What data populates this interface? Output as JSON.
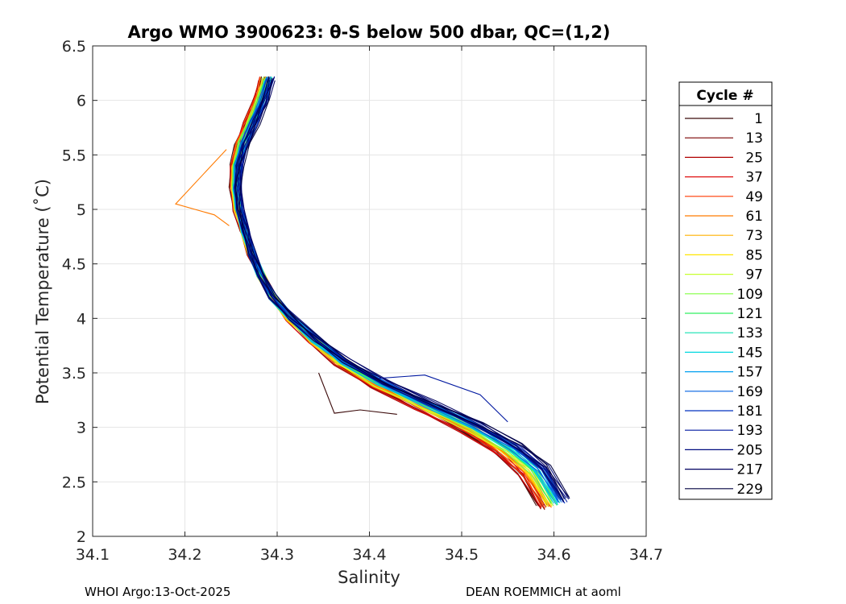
{
  "chart_data": {
    "type": "line",
    "title": "Argo WMO 3900623: θ-S below 500 dbar,  QC=(1,2)",
    "xlabel": "Salinity",
    "ylabel": "Potential Temperature (˚C)",
    "xlim": [
      34.1,
      34.7
    ],
    "ylim": [
      2,
      6.5
    ],
    "xticks": [
      "34.1",
      "34.2",
      "34.3",
      "34.4",
      "34.5",
      "34.6",
      "34.7"
    ],
    "yticks": [
      "2",
      "2.5",
      "3",
      "3.5",
      "4",
      "4.5",
      "5",
      "5.5",
      "6",
      "6.5"
    ],
    "grid": true,
    "legend": {
      "title": "Cycle #",
      "position": "right-outside",
      "entries": [
        {
          "label": "1",
          "color": "#3b0a0a"
        },
        {
          "label": "13",
          "color": "#7a0000"
        },
        {
          "label": "25",
          "color": "#b00000"
        },
        {
          "label": "37",
          "color": "#e01010"
        },
        {
          "label": "49",
          "color": "#ff3a00"
        },
        {
          "label": "61",
          "color": "#ff7a00"
        },
        {
          "label": "73",
          "color": "#ffb000"
        },
        {
          "label": "85",
          "color": "#ffe600"
        },
        {
          "label": "97",
          "color": "#c8ff30"
        },
        {
          "label": "109",
          "color": "#80ff40"
        },
        {
          "label": "121",
          "color": "#30f060"
        },
        {
          "label": "133",
          "color": "#10e0b0"
        },
        {
          "label": "145",
          "color": "#00d8e0"
        },
        {
          "label": "157",
          "color": "#00a0f0"
        },
        {
          "label": "169",
          "color": "#0060e0"
        },
        {
          "label": "181",
          "color": "#0030c0"
        },
        {
          "label": "193",
          "color": "#0018a0"
        },
        {
          "label": "205",
          "color": "#000c80"
        },
        {
          "label": "217",
          "color": "#000060"
        },
        {
          "label": "229",
          "color": "#000040"
        }
      ]
    },
    "base_curve": {
      "salinity": [
        34.289,
        34.282,
        34.272,
        34.262,
        34.256,
        34.255,
        34.258,
        34.265,
        34.272,
        34.282,
        34.295,
        34.315,
        34.34,
        34.37,
        34.41,
        34.46,
        34.51,
        34.55,
        34.578,
        34.6
      ],
      "theta": [
        6.2,
        6.0,
        5.8,
        5.6,
        5.4,
        5.2,
        5.0,
        4.8,
        4.6,
        4.4,
        4.2,
        4.0,
        3.8,
        3.6,
        3.4,
        3.2,
        3.0,
        2.8,
        2.6,
        2.3
      ]
    },
    "annotations": [
      {
        "cycle": "1",
        "salinity": [
          34.345,
          34.362,
          34.39,
          34.43
        ],
        "theta": [
          3.5,
          3.13,
          3.16,
          3.12
        ]
      },
      {
        "cycle": "61",
        "salinity": [
          34.245,
          34.19,
          34.232,
          34.248
        ],
        "theta": [
          5.55,
          5.05,
          4.95,
          4.85
        ]
      },
      {
        "cycle": "193",
        "salinity": [
          34.41,
          34.46,
          34.52,
          34.55
        ],
        "theta": [
          3.45,
          3.48,
          3.3,
          3.05
        ]
      }
    ]
  },
  "footer": {
    "left": "WHOI Argo:13-Oct-2025",
    "right": "DEAN ROEMMICH at aoml"
  }
}
